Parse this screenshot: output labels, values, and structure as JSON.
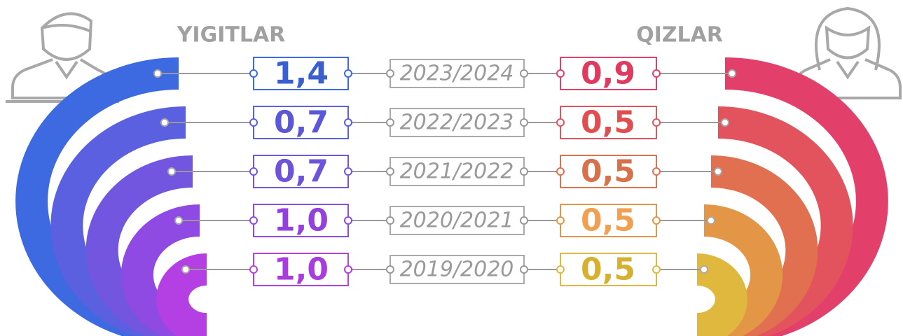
{
  "header": {
    "left": "YIGITLAR",
    "right": "QIZLAR"
  },
  "rows": [
    {
      "boys": "1,4",
      "year": "2023/2024",
      "girls": "0,9"
    },
    {
      "boys": "0,7",
      "year": "2022/2023",
      "girls": "0,5"
    },
    {
      "boys": "0,7",
      "year": "2021/2022",
      "girls": "0,5"
    },
    {
      "boys": "1,0",
      "year": "2020/2021",
      "girls": "0,5"
    },
    {
      "boys": "1,0",
      "year": "2019/2020",
      "girls": "0,5"
    }
  ]
}
